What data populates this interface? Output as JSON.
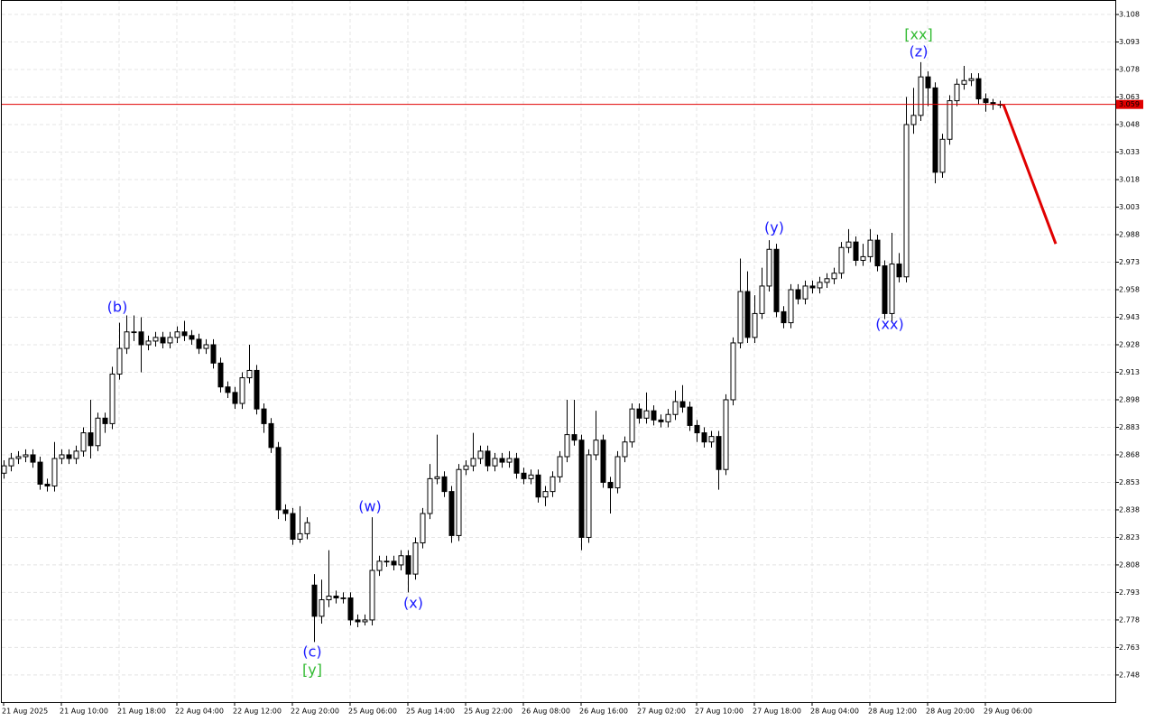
{
  "chart_data": {
    "type": "candlestick",
    "categories": [
      "21 Aug 2025",
      null,
      null,
      null,
      null,
      null,
      null,
      null,
      "21 Aug 10:00",
      null,
      null,
      null,
      null,
      null,
      null,
      null,
      "21 Aug 18:00",
      null,
      null,
      null,
      null,
      null,
      null,
      null,
      "22 Aug 04:00",
      null,
      null,
      null,
      null,
      null,
      null,
      null,
      "22 Aug 12:00",
      null,
      null,
      null,
      null,
      null,
      null,
      null,
      "22 Aug 20:00",
      null,
      null,
      null,
      null,
      null,
      null,
      null,
      "25 Aug 06:00",
      null,
      null,
      null,
      null,
      null,
      null,
      null,
      "25 Aug 14:00",
      null,
      null,
      null,
      null,
      null,
      null,
      null,
      "25 Aug 22:00",
      null,
      null,
      null,
      null,
      null,
      null,
      null,
      "26 Aug 08:00",
      null,
      null,
      null,
      null,
      null,
      null,
      null,
      "26 Aug 16:00",
      null,
      null,
      null,
      null,
      null,
      null,
      null,
      "27 Aug 02:00",
      null,
      null,
      null,
      null,
      null,
      null,
      null,
      "27 Aug 10:00",
      null,
      null,
      null,
      null,
      null,
      null,
      null,
      "27 Aug 18:00",
      null,
      null,
      null,
      null,
      null,
      null,
      null,
      "28 Aug 04:00",
      null,
      null,
      null,
      null,
      null,
      null,
      null,
      "28 Aug 12:00",
      null,
      null,
      null,
      null,
      null,
      null,
      null,
      "28 Aug 20:00",
      null,
      null,
      null,
      null,
      null,
      null,
      null,
      "29 Aug 06:00",
      null,
      null
    ],
    "open": [
      2.858,
      2.862,
      2.866,
      2.867,
      2.868,
      2.864,
      2.852,
      2.851,
      2.866,
      2.868,
      2.866,
      2.87,
      2.88,
      2.873,
      2.888,
      2.885,
      2.912,
      2.926,
      2.935,
      2.935,
      2.928,
      2.93,
      2.932,
      2.929,
      2.932,
      2.935,
      2.933,
      2.931,
      2.926,
      2.928,
      2.918,
      2.905,
      2.902,
      2.896,
      2.91,
      2.914,
      2.893,
      2.885,
      2.872,
      2.838,
      2.836,
      2.822,
      2.825,
      2.797,
      2.78,
      2.789,
      2.791,
      2.79,
      2.79,
      2.778,
      2.777,
      2.778,
      2.805,
      2.81,
      2.81,
      2.808,
      2.813,
      2.803,
      2.82,
      2.836,
      2.855,
      2.856,
      2.848,
      2.824,
      2.86,
      2.862,
      2.866,
      2.87,
      2.862,
      2.866,
      2.864,
      2.866,
      2.858,
      2.855,
      2.857,
      2.845,
      2.848,
      2.856,
      2.867,
      2.879,
      2.876,
      2.823,
      2.868,
      2.876,
      2.853,
      2.85,
      2.867,
      2.875,
      2.893,
      2.888,
      2.892,
      2.887,
      2.886,
      2.89,
      2.897,
      2.894,
      2.884,
      2.88,
      2.875,
      2.878,
      2.86,
      2.898,
      2.929,
      2.957,
      2.932,
      2.945,
      2.96,
      2.98,
      2.946,
      2.94,
      2.958,
      2.953,
      2.96,
      2.959,
      2.962,
      2.964,
      2.967,
      2.981,
      2.984,
      2.974,
      2.976,
      2.985,
      2.971,
      2.945,
      2.972,
      2.965,
      3.048,
      3.053,
      3.074,
      3.068,
      3.022,
      3.04,
      3.061,
      3.07,
      3.072,
      3.073,
      3.062,
      3.06,
      3.059
    ],
    "high": [
      2.865,
      2.869,
      2.87,
      2.871,
      2.871,
      2.867,
      2.855,
      2.875,
      2.871,
      2.871,
      2.873,
      2.883,
      2.898,
      2.891,
      2.891,
      2.916,
      2.94,
      2.944,
      2.944,
      2.943,
      2.933,
      2.935,
      2.935,
      2.935,
      2.938,
      2.941,
      2.936,
      2.934,
      2.931,
      2.931,
      2.921,
      2.908,
      2.905,
      2.913,
      2.928,
      2.917,
      2.896,
      2.888,
      2.875,
      2.841,
      2.839,
      2.84,
      2.834,
      2.803,
      2.8,
      2.816,
      2.794,
      2.793,
      2.793,
      2.781,
      2.781,
      2.834,
      2.813,
      2.813,
      2.813,
      2.816,
      2.816,
      2.823,
      2.839,
      2.863,
      2.879,
      2.859,
      2.851,
      2.863,
      2.865,
      2.88,
      2.873,
      2.873,
      2.869,
      2.869,
      2.87,
      2.869,
      2.861,
      2.86,
      2.86,
      2.851,
      2.859,
      2.87,
      2.898,
      2.898,
      2.879,
      2.871,
      2.892,
      2.879,
      2.856,
      2.87,
      2.878,
      2.896,
      2.896,
      2.902,
      2.895,
      2.89,
      2.893,
      2.903,
      2.906,
      2.897,
      2.887,
      2.883,
      2.881,
      2.881,
      2.901,
      2.932,
      2.975,
      2.968,
      2.955,
      2.97,
      2.985,
      2.983,
      2.949,
      2.961,
      2.961,
      2.963,
      2.963,
      2.965,
      2.967,
      2.97,
      2.984,
      2.991,
      2.987,
      2.983,
      2.991,
      2.988,
      2.974,
      2.989,
      2.978,
      3.063,
      3.068,
      3.082,
      3.077,
      3.071,
      3.043,
      3.064,
      3.073,
      3.08,
      3.076,
      3.076,
      3.065,
      3.062,
      3.061
    ],
    "low": [
      2.855,
      2.859,
      2.863,
      2.864,
      2.861,
      2.849,
      2.848,
      2.848,
      2.863,
      2.863,
      2.863,
      2.867,
      2.866,
      2.87,
      2.88,
      2.882,
      2.909,
      2.923,
      2.93,
      2.913,
      2.925,
      2.927,
      2.926,
      2.926,
      2.929,
      2.93,
      2.928,
      2.923,
      2.923,
      2.915,
      2.902,
      2.899,
      2.893,
      2.893,
      2.907,
      2.89,
      2.88,
      2.869,
      2.833,
      2.832,
      2.819,
      2.82,
      2.822,
      2.766,
      2.776,
      2.785,
      2.787,
      2.787,
      2.775,
      2.774,
      2.775,
      2.775,
      2.802,
      2.807,
      2.805,
      2.805,
      2.793,
      2.8,
      2.817,
      2.833,
      2.852,
      2.845,
      2.82,
      2.821,
      2.857,
      2.859,
      2.863,
      2.859,
      2.859,
      2.861,
      2.861,
      2.855,
      2.852,
      2.852,
      2.842,
      2.84,
      2.845,
      2.853,
      2.864,
      2.873,
      2.816,
      2.82,
      2.865,
      2.85,
      2.836,
      2.847,
      2.864,
      2.872,
      2.885,
      2.885,
      2.884,
      2.883,
      2.883,
      2.887,
      2.891,
      2.881,
      2.875,
      2.872,
      2.872,
      2.849,
      2.857,
      2.895,
      2.926,
      2.929,
      2.929,
      2.942,
      2.957,
      2.943,
      2.937,
      2.937,
      2.95,
      2.95,
      2.956,
      2.956,
      2.959,
      2.961,
      2.964,
      2.978,
      2.971,
      2.971,
      2.973,
      2.968,
      2.942,
      2.94,
      2.962,
      2.962,
      3.043,
      3.05,
      3.058,
      3.016,
      3.019,
      3.037,
      3.058,
      3.067,
      3.069,
      3.059,
      3.055,
      3.056,
      3.057
    ],
    "close": [
      2.862,
      2.866,
      2.867,
      2.868,
      2.864,
      2.852,
      2.851,
      2.866,
      2.868,
      2.866,
      2.87,
      2.88,
      2.873,
      2.888,
      2.885,
      2.912,
      2.926,
      2.935,
      2.935,
      2.928,
      2.93,
      2.932,
      2.929,
      2.932,
      2.935,
      2.933,
      2.931,
      2.926,
      2.928,
      2.918,
      2.905,
      2.902,
      2.896,
      2.91,
      2.914,
      2.893,
      2.885,
      2.872,
      2.838,
      2.836,
      2.822,
      2.825,
      2.831,
      2.78,
      2.789,
      2.791,
      2.79,
      2.79,
      2.778,
      2.777,
      2.778,
      2.805,
      2.81,
      2.81,
      2.808,
      2.813,
      2.803,
      2.82,
      2.836,
      2.855,
      2.856,
      2.848,
      2.824,
      2.86,
      2.862,
      2.866,
      2.87,
      2.862,
      2.866,
      2.864,
      2.866,
      2.858,
      2.855,
      2.857,
      2.845,
      2.848,
      2.856,
      2.867,
      2.879,
      2.876,
      2.823,
      2.868,
      2.876,
      2.853,
      2.85,
      2.867,
      2.875,
      2.893,
      2.888,
      2.892,
      2.887,
      2.886,
      2.89,
      2.897,
      2.894,
      2.884,
      2.88,
      2.875,
      2.878,
      2.86,
      2.898,
      2.929,
      2.957,
      2.932,
      2.945,
      2.96,
      2.98,
      2.946,
      2.94,
      2.958,
      2.953,
      2.96,
      2.959,
      2.962,
      2.964,
      2.967,
      2.981,
      2.984,
      2.974,
      2.976,
      2.985,
      2.971,
      2.945,
      2.972,
      2.965,
      3.048,
      3.053,
      3.074,
      3.068,
      3.022,
      3.04,
      3.061,
      3.07,
      3.072,
      3.073,
      3.062,
      3.06,
      3.059,
      3.059
    ],
    "up_color": "#ffffff",
    "down_color": "#000000",
    "ylim": [
      2.7332,
      3.1159
    ],
    "yticks": [
      3.108,
      3.093,
      3.078,
      3.063,
      3.048,
      3.033,
      3.018,
      3.003,
      2.988,
      2.973,
      2.958,
      2.943,
      2.928,
      2.913,
      2.898,
      2.883,
      2.868,
      2.853,
      2.838,
      2.823,
      2.808,
      2.793,
      2.778,
      2.763,
      2.748
    ],
    "grid": true,
    "current_price": 3.059,
    "price_line_color": "#e00000",
    "forecast_line": [
      3.059,
      2.983
    ],
    "forecast_color": "#e00000",
    "annotations": [
      {
        "text": "(b)",
        "color": "#1a1aff"
      },
      {
        "text": "(c)",
        "color": "#1a1aff"
      },
      {
        "text": "[y]",
        "color": "#33bb33"
      },
      {
        "text": "(w)",
        "color": "#1a1aff"
      },
      {
        "text": "(x)",
        "color": "#1a1aff"
      },
      {
        "text": "(y)",
        "color": "#1a1aff"
      },
      {
        "text": "(xx)",
        "color": "#1a1aff"
      },
      {
        "text": "(z)",
        "color": "#1a1aff"
      },
      {
        "text": "[xx]",
        "color": "#33bb33"
      }
    ]
  }
}
